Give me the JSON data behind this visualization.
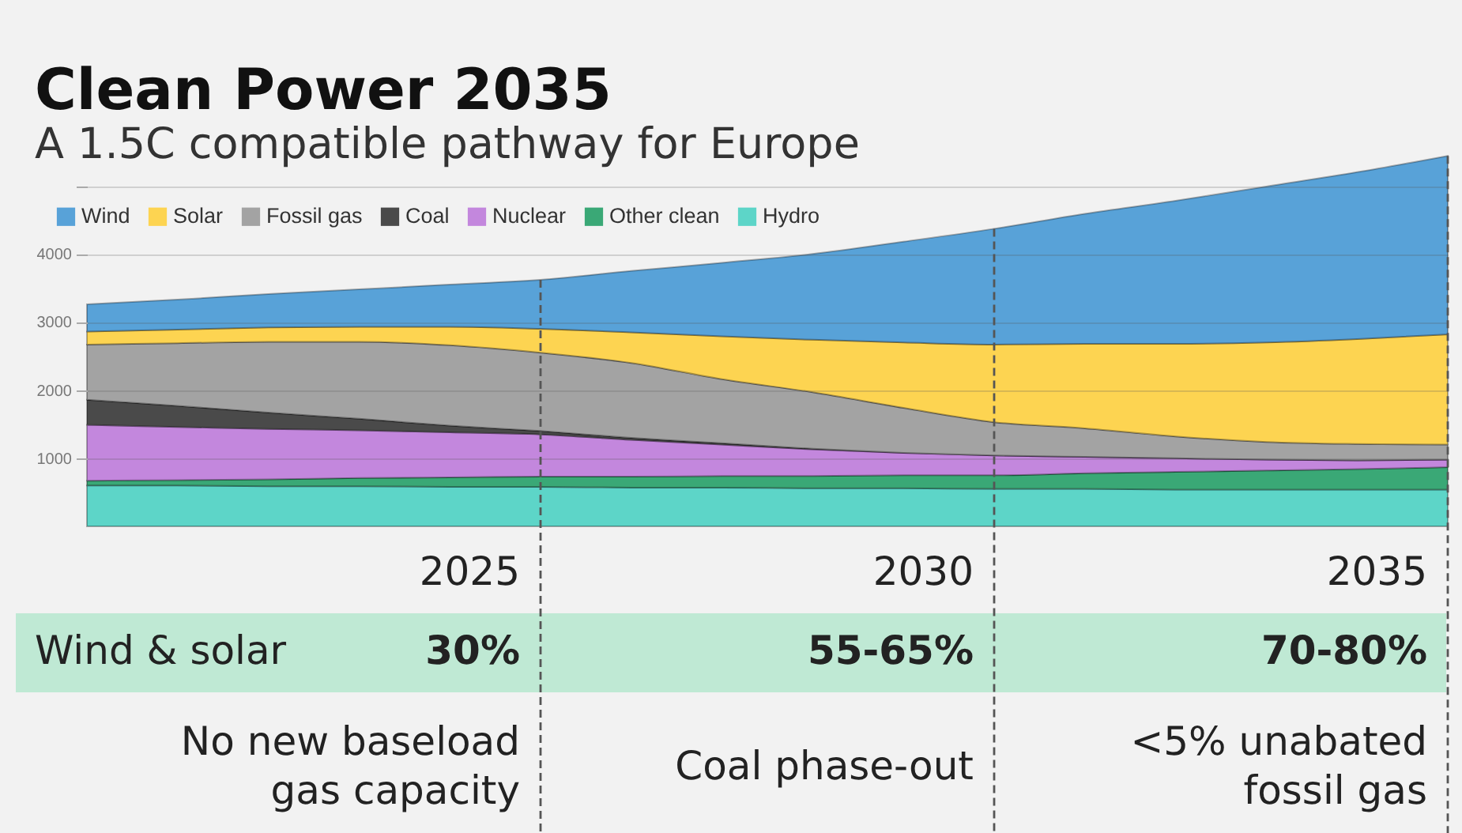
{
  "chart_data": {
    "type": "area",
    "title": "Clean Power 2035",
    "subtitle": "A 1.5C compatible pathway for Europe",
    "x": [
      2020,
      2021,
      2022,
      2023,
      2024,
      2025,
      2026,
      2027,
      2028,
      2029,
      2030,
      2031,
      2032,
      2033,
      2034,
      2035
    ],
    "series": [
      {
        "name": "Hydro",
        "color": "#5dd5c8",
        "values": [
          600,
          600,
          590,
          590,
          580,
          580,
          570,
          570,
          560,
          560,
          550,
          550,
          540,
          540,
          540,
          540
        ]
      },
      {
        "name": "Other clean",
        "color": "#3aa876",
        "values": [
          70,
          80,
          100,
          120,
          140,
          150,
          160,
          170,
          180,
          190,
          200,
          230,
          260,
          280,
          300,
          330
        ]
      },
      {
        "name": "Nuclear",
        "color": "#c387dd",
        "values": [
          820,
          780,
          740,
          700,
          660,
          620,
          540,
          460,
          390,
          330,
          290,
          240,
          200,
          160,
          130,
          110
        ]
      },
      {
        "name": "Coal",
        "color": "#4a4a4a",
        "values": [
          370,
          310,
          240,
          170,
          100,
          50,
          30,
          20,
          10,
          0,
          0,
          0,
          0,
          0,
          0,
          0
        ]
      },
      {
        "name": "Fossil gas",
        "color": "#a3a3a3",
        "values": [
          810,
          920,
          1040,
          1130,
          1180,
          1150,
          1100,
          940,
          830,
          660,
          490,
          420,
          320,
          260,
          240,
          220
        ]
      },
      {
        "name": "Solar",
        "color": "#fdd451",
        "values": [
          190,
          200,
          210,
          220,
          270,
          350,
          450,
          630,
          770,
          960,
          1140,
          1240,
          1360,
          1460,
          1540,
          1620
        ]
      },
      {
        "name": "Wind",
        "color": "#58a2d8",
        "values": [
          400,
          440,
          490,
          550,
          620,
          720,
          900,
          1080,
          1260,
          1480,
          1700,
          1910,
          2100,
          2290,
          2450,
          2620
        ]
      }
    ],
    "stacked": true,
    "xlim": [
      2020,
      2035
    ],
    "ylim": [
      0,
      5500
    ],
    "yticks": [
      1000,
      2000,
      3000,
      4000,
      {
        "value": 5000,
        "label": null
      }
    ],
    "grid": "y",
    "legend": "top left",
    "tick_labels": "y",
    "ref_lines": [
      {
        "axis": "x",
        "value": 2025,
        "label": "2025",
        "line_style": "dashed",
        "color": "#555555"
      },
      {
        "axis": "x",
        "value": 2030,
        "label": "2030",
        "line_style": "dashed",
        "color": "#555555"
      },
      {
        "axis": "x",
        "value": 2035,
        "label": "2035",
        "line_style": "dashed",
        "color": "#555555"
      }
    ],
    "annotations": [
      "Wind & solar",
      "30%",
      "55-65%",
      "70-80%",
      "No new baseload\ngas capacity",
      "Coal phase-out",
      "<5% unabated\nfossil gas"
    ]
  }
}
